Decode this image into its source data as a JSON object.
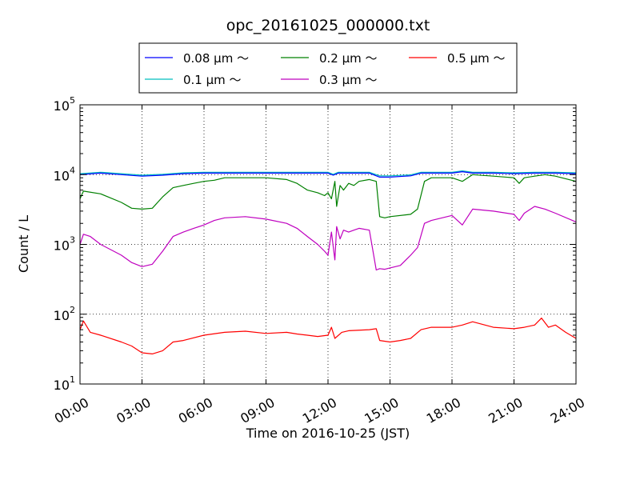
{
  "chart_data": {
    "type": "line",
    "title": "opc_20161025_000000.txt",
    "xlabel": "Time on 2016-10-25 (JST)",
    "ylabel": "Count / L",
    "x_range": [
      "00:00",
      "24:00"
    ],
    "x_ticks": [
      "00:00",
      "03:00",
      "06:00",
      "09:00",
      "12:00",
      "15:00",
      "18:00",
      "21:00",
      "24:00"
    ],
    "y_scale": "log",
    "ylim": [
      10,
      100000
    ],
    "y_ticks": [
      {
        "base": "10",
        "exp": "1"
      },
      {
        "base": "10",
        "exp": "2"
      },
      {
        "base": "10",
        "exp": "3"
      },
      {
        "base": "10",
        "exp": "4"
      },
      {
        "base": "10",
        "exp": "5"
      }
    ],
    "grid": true,
    "legend_position": "top",
    "series": [
      {
        "name": "0.08 μm ～",
        "color": "#0000ff",
        "x": [
          "00:00",
          "01:00",
          "02:00",
          "03:00",
          "04:00",
          "05:00",
          "06:00",
          "07:00",
          "08:00",
          "09:00",
          "10:00",
          "11:00",
          "12:00",
          "12:15",
          "12:30",
          "13:00",
          "14:00",
          "14:30",
          "15:00",
          "16:00",
          "16:30",
          "17:00",
          "18:00",
          "18:30",
          "19:00",
          "20:00",
          "21:00",
          "22:00",
          "23:00",
          "24:00"
        ],
        "y": [
          10000,
          10500,
          10000,
          9500,
          9800,
          10300,
          10500,
          10500,
          10500,
          10500,
          10500,
          10500,
          10500,
          9800,
          10500,
          10500,
          10500,
          9200,
          9200,
          9600,
          10500,
          10500,
          10500,
          11000,
          10500,
          10500,
          10300,
          10500,
          10500,
          10300
        ]
      },
      {
        "name": "0.1 μm ～",
        "color": "#00bfbf",
        "x": [
          "00:00",
          "01:00",
          "02:00",
          "03:00",
          "04:00",
          "05:00",
          "06:00",
          "07:00",
          "08:00",
          "09:00",
          "10:00",
          "11:00",
          "12:00",
          "12:15",
          "12:30",
          "13:00",
          "14:00",
          "14:30",
          "15:00",
          "16:00",
          "16:30",
          "17:00",
          "18:00",
          "18:30",
          "19:00",
          "20:00",
          "21:00",
          "22:00",
          "23:00",
          "24:00"
        ],
        "y": [
          10300,
          10800,
          10300,
          9800,
          10100,
          10600,
          10800,
          10800,
          10800,
          10800,
          10800,
          10800,
          10800,
          10100,
          10800,
          10800,
          10800,
          9600,
          9600,
          9900,
          10800,
          10800,
          10800,
          11300,
          10800,
          10800,
          10600,
          10800,
          10800,
          10600
        ]
      },
      {
        "name": "0.2 μm ～",
        "color": "#008000",
        "x": [
          "00:00",
          "00:10",
          "01:00",
          "02:00",
          "02:30",
          "03:00",
          "03:30",
          "04:00",
          "04:30",
          "05:00",
          "05:30",
          "06:00",
          "06:30",
          "07:00",
          "08:00",
          "09:00",
          "10:00",
          "10:30",
          "11:00",
          "11:30",
          "11:50",
          "12:00",
          "12:10",
          "12:20",
          "12:25",
          "12:35",
          "12:45",
          "13:00",
          "13:15",
          "13:30",
          "14:00",
          "14:20",
          "14:30",
          "14:45",
          "15:00",
          "16:00",
          "16:20",
          "16:40",
          "17:00",
          "18:00",
          "18:30",
          "19:00",
          "20:00",
          "21:00",
          "21:15",
          "21:30",
          "22:00",
          "22:30",
          "23:00",
          "24:00"
        ],
        "y": [
          4500,
          5800,
          5300,
          4000,
          3300,
          3200,
          3300,
          4800,
          6500,
          7000,
          7500,
          8000,
          8300,
          9000,
          9000,
          9000,
          8500,
          7500,
          6000,
          5500,
          5000,
          5500,
          4500,
          8000,
          3500,
          7000,
          6000,
          7500,
          7000,
          8000,
          8500,
          8000,
          2500,
          2400,
          2500,
          2700,
          3200,
          8000,
          9000,
          9000,
          8000,
          10000,
          9500,
          9000,
          7500,
          9000,
          9500,
          10000,
          9500,
          8000
        ]
      },
      {
        "name": "0.3 μm ～",
        "color": "#bf00bf",
        "x": [
          "00:00",
          "00:10",
          "00:30",
          "01:00",
          "02:00",
          "02:30",
          "03:00",
          "03:30",
          "04:00",
          "04:30",
          "05:00",
          "05:30",
          "06:00",
          "06:30",
          "07:00",
          "08:00",
          "09:00",
          "10:00",
          "10:30",
          "11:00",
          "11:30",
          "11:50",
          "12:00",
          "12:10",
          "12:20",
          "12:25",
          "12:35",
          "12:45",
          "13:00",
          "13:15",
          "13:30",
          "14:00",
          "14:20",
          "14:30",
          "14:45",
          "15:00",
          "15:30",
          "16:00",
          "16:20",
          "16:40",
          "17:00",
          "18:00",
          "18:30",
          "19:00",
          "20:00",
          "21:00",
          "21:15",
          "21:30",
          "22:00",
          "22:30",
          "23:00",
          "24:00"
        ],
        "y": [
          1000,
          1400,
          1300,
          1000,
          700,
          550,
          480,
          520,
          800,
          1300,
          1500,
          1700,
          1900,
          2200,
          2400,
          2500,
          2300,
          2000,
          1700,
          1300,
          1000,
          800,
          700,
          1500,
          600,
          1800,
          1200,
          1600,
          1500,
          1600,
          1700,
          1600,
          430,
          450,
          440,
          460,
          500,
          700,
          900,
          2000,
          2200,
          2600,
          1900,
          3200,
          3000,
          2700,
          2200,
          2800,
          3500,
          3200,
          2800,
          2100
        ]
      },
      {
        "name": "0.5 μm ～",
        "color": "#ff0000",
        "x": [
          "00:00",
          "00:10",
          "00:30",
          "01:00",
          "02:00",
          "02:30",
          "03:00",
          "03:30",
          "04:00",
          "04:30",
          "05:00",
          "06:00",
          "07:00",
          "08:00",
          "09:00",
          "10:00",
          "10:30",
          "11:00",
          "11:30",
          "12:00",
          "12:10",
          "12:20",
          "12:40",
          "13:00",
          "14:00",
          "14:20",
          "14:30",
          "15:00",
          "15:30",
          "16:00",
          "16:30",
          "17:00",
          "18:00",
          "18:30",
          "19:00",
          "20:00",
          "21:00",
          "21:30",
          "22:00",
          "22:20",
          "22:40",
          "23:00",
          "23:30",
          "24:00"
        ],
        "y": [
          60,
          80,
          55,
          50,
          40,
          35,
          28,
          27,
          30,
          40,
          42,
          50,
          55,
          57,
          53,
          55,
          52,
          50,
          48,
          50,
          65,
          45,
          55,
          58,
          60,
          62,
          42,
          40,
          42,
          45,
          60,
          65,
          65,
          70,
          78,
          65,
          62,
          65,
          70,
          88,
          65,
          70,
          55,
          45
        ]
      }
    ]
  }
}
